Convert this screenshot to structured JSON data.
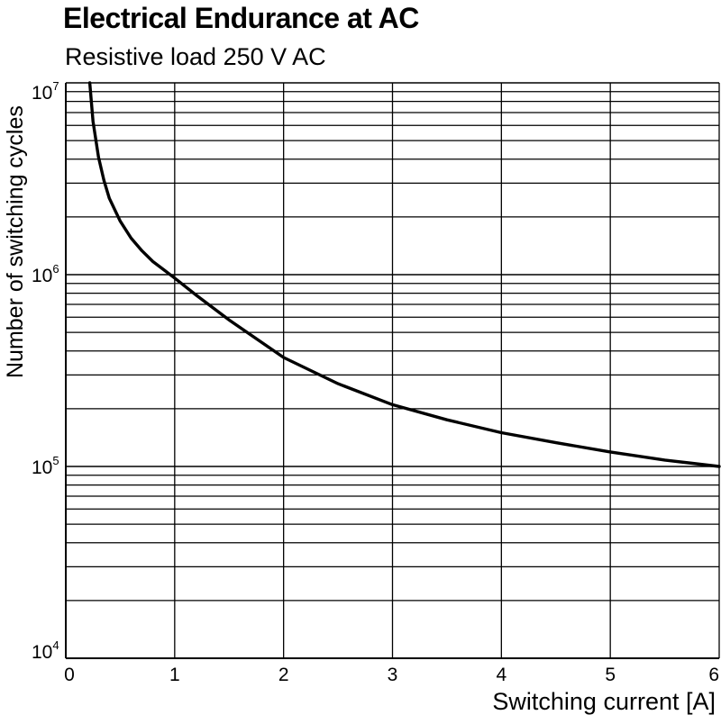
{
  "chart_data": {
    "type": "line",
    "title": "Electrical Endurance at AC",
    "subtitle": "Resistive load 250 V AC",
    "xlabel": "Switching current [A]",
    "ylabel": "Number of switching cycles",
    "xlim": [
      0,
      6
    ],
    "ylim": [
      10000,
      10000000
    ],
    "yscale": "log",
    "grid": true,
    "x_ticks": [
      {
        "value": 0,
        "label": "0"
      },
      {
        "value": 1,
        "label": "1"
      },
      {
        "value": 2,
        "label": "2"
      },
      {
        "value": 3,
        "label": "3"
      },
      {
        "value": 4,
        "label": "4"
      },
      {
        "value": 5,
        "label": "5"
      },
      {
        "value": 6,
        "label": "6"
      }
    ],
    "y_ticks": [
      {
        "value": 10000,
        "base": "10",
        "exp": "4"
      },
      {
        "value": 100000,
        "base": "10",
        "exp": "5"
      },
      {
        "value": 1000000,
        "base": "10",
        "exp": "6"
      },
      {
        "value": 10000000,
        "base": "10",
        "exp": "7"
      }
    ],
    "series": [
      {
        "x": [
          0.22,
          0.25,
          0.3,
          0.35,
          0.4,
          0.5,
          0.6,
          0.7,
          0.8,
          0.9,
          1.0,
          1.2,
          1.5,
          2.0,
          2.5,
          3.0,
          3.5,
          4.0,
          4.5,
          5.0,
          5.5,
          6.0
        ],
        "y": [
          10000000,
          6300000,
          4100000,
          3100000,
          2500000,
          1900000,
          1550000,
          1330000,
          1170000,
          1060000,
          960000,
          780000,
          580000,
          370000,
          270000,
          210000,
          175000,
          150000,
          133000,
          119000,
          108000,
          100000
        ]
      }
    ],
    "colors": {
      "line": "#000000",
      "grid": "#000000"
    }
  }
}
